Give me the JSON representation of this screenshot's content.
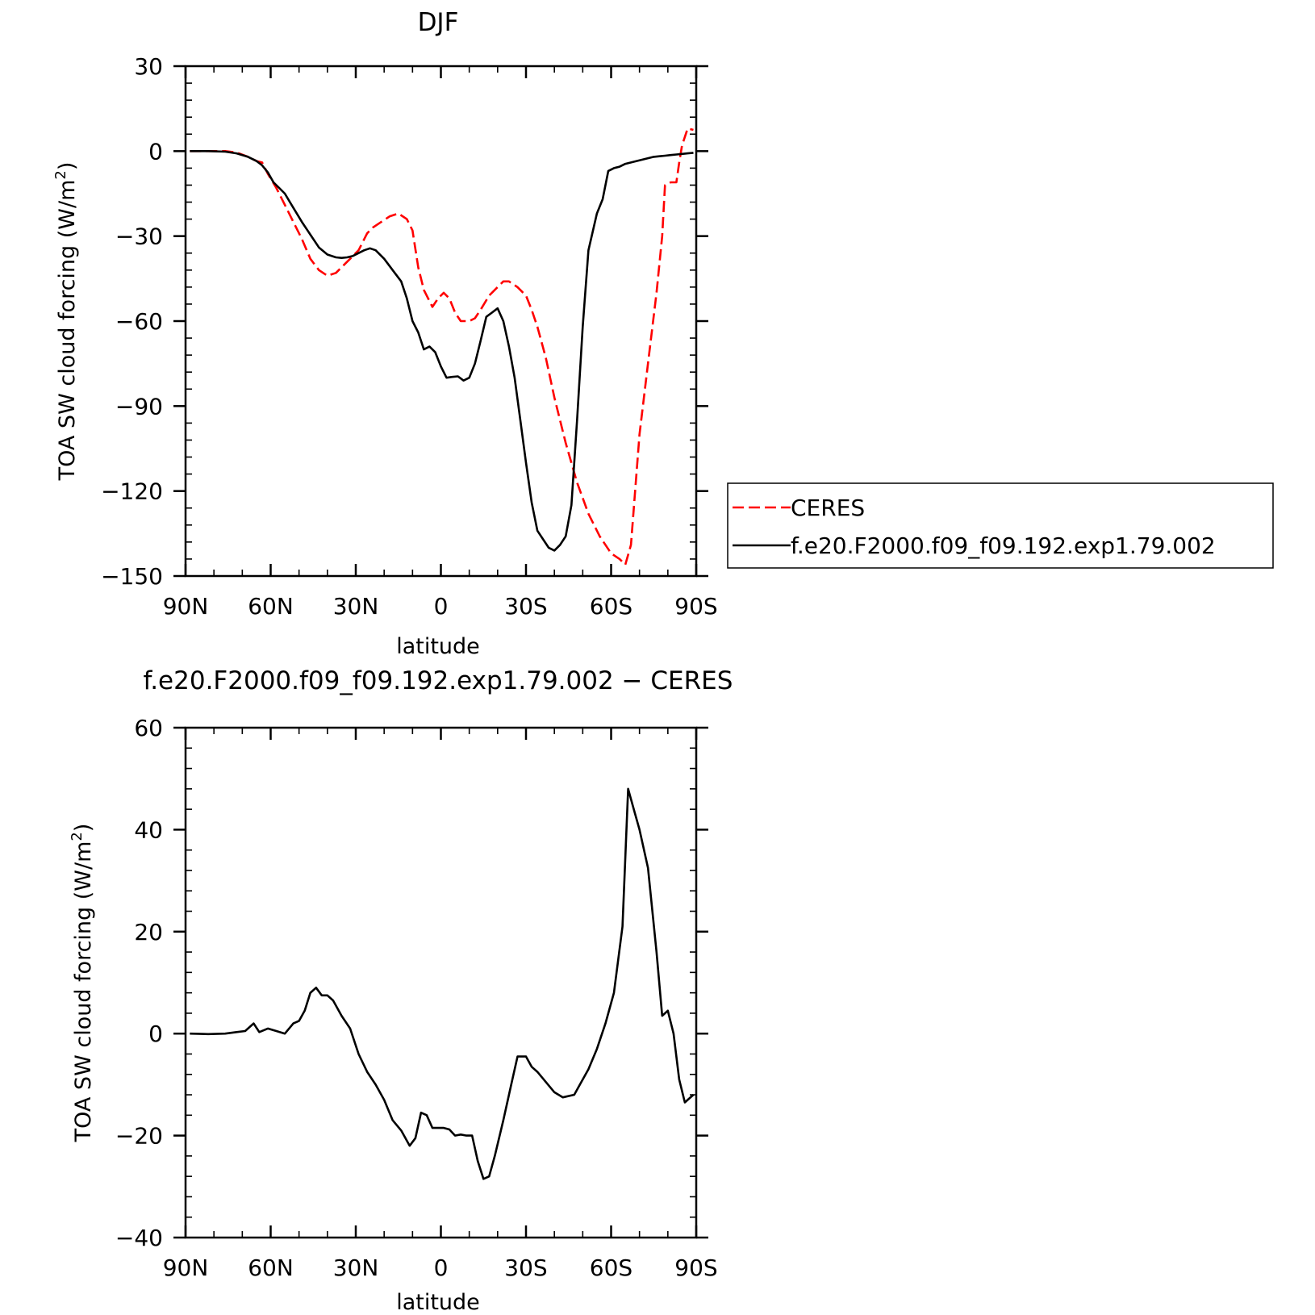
{
  "chart_data": [
    {
      "type": "line",
      "title": "DJF",
      "xlabel": "latitude",
      "ylabel": "TOA SW cloud forcing (W/m",
      "ylabel_sup": "2",
      "ylabel_close": ")",
      "x_tick_labels": [
        "90N",
        "60N",
        "30N",
        "0",
        "30S",
        "60S",
        "90S"
      ],
      "x_tick_values": [
        90,
        60,
        30,
        0,
        -30,
        -60,
        -90
      ],
      "xlim": [
        90,
        -90
      ],
      "ylim": [
        -150,
        30
      ],
      "y_ticks": [
        30,
        0,
        -30,
        -60,
        -90,
        -120,
        -150
      ],
      "y_tick_labels": [
        "30",
        "0",
        "−30",
        "−60",
        "−90",
        "−120",
        "−150"
      ],
      "legend": {
        "placement": "right"
      },
      "series": [
        {
          "name": "CERES",
          "color": "#ff0000",
          "dash": "dashed",
          "x": [
            88.5,
            82,
            76,
            72,
            68,
            65,
            63,
            61,
            58,
            55,
            52,
            49,
            46,
            43,
            40,
            37,
            35,
            32,
            29,
            26,
            24,
            21,
            18,
            15,
            12,
            10,
            8,
            6,
            3,
            1,
            -1,
            -3,
            -5,
            -7,
            -10,
            -12,
            -14,
            -17,
            -20,
            -22,
            -24,
            -27,
            -30,
            -32,
            -34,
            -37,
            -40,
            -44,
            -48,
            -52,
            -56,
            -60,
            -63,
            -65,
            -67,
            -70,
            -73,
            -76,
            -78,
            -79,
            -81,
            -83,
            -84,
            -85,
            -87,
            -89
          ],
          "y": [
            0,
            0,
            0,
            -0.5,
            -2,
            -3.5,
            -4,
            -8,
            -13,
            -19,
            -25,
            -31,
            -38,
            -42,
            -44,
            -43,
            -41,
            -38,
            -35,
            -29,
            -27,
            -25,
            -23,
            -22,
            -24,
            -28,
            -41,
            -49,
            -55,
            -52,
            -50,
            -52,
            -57,
            -60,
            -60,
            -59,
            -56,
            -51,
            -48,
            -46,
            -46,
            -48,
            -51,
            -56,
            -62,
            -73,
            -87,
            -103,
            -117,
            -128,
            -136,
            -142,
            -144,
            -146,
            -139,
            -100,
            -75,
            -50,
            -30,
            -12,
            -11,
            -11,
            -4,
            2,
            8,
            7.5
          ]
        },
        {
          "name": "f.e20.F2000.f09_f09.192.exp1.79.002",
          "color": "#000000",
          "dash": "solid",
          "x": [
            88.5,
            82,
            76,
            72,
            68,
            65,
            63,
            61,
            59,
            57,
            55,
            52,
            49,
            46,
            43,
            40,
            37,
            35,
            33,
            31,
            29,
            27,
            25,
            23,
            20,
            17,
            14,
            12,
            10,
            8,
            6,
            4,
            2,
            0,
            -2,
            -4,
            -6,
            -8,
            -10,
            -12,
            -14,
            -16,
            -18,
            -20,
            -22,
            -24,
            -26,
            -28,
            -30,
            -32,
            -34,
            -36,
            -38,
            -40,
            -42,
            -44,
            -46,
            -48,
            -50,
            -52,
            -55,
            -57,
            -59,
            -61,
            -63,
            -65,
            -67,
            -69,
            -71,
            -73,
            -75,
            -77,
            -79,
            -81,
            -83,
            -85,
            -87,
            -89
          ],
          "y": [
            0,
            0,
            -0.2,
            -0.8,
            -2,
            -3.5,
            -5,
            -7.5,
            -11,
            -13,
            -15,
            -20,
            -25,
            -29.5,
            -34,
            -36.5,
            -37.5,
            -37.7,
            -37.5,
            -37,
            -36,
            -35,
            -34.3,
            -35,
            -38,
            -42,
            -46,
            -52,
            -60,
            -64,
            -70,
            -69,
            -71,
            -76,
            -80,
            -79.7,
            -79.5,
            -81,
            -80,
            -75,
            -67,
            -58.5,
            -57,
            -55.5,
            -60,
            -69,
            -80,
            -95,
            -110,
            -124,
            -134,
            -137,
            -140,
            -141,
            -139,
            -136,
            -125,
            -95,
            -62,
            -35,
            -22,
            -17,
            -7,
            -6,
            -5.5,
            -4.5,
            -4,
            -3.5,
            -3,
            -2.5,
            -2,
            -1.8,
            -1.6,
            -1.4,
            -1.2,
            -1,
            -0.8,
            -0.6
          ]
        }
      ]
    },
    {
      "type": "line",
      "title": "f.e20.F2000.f09_f09.192.exp1.79.002 − CERES",
      "xlabel": "latitude",
      "ylabel": "TOA SW cloud forcing (W/m",
      "ylabel_sup": "2",
      "ylabel_close": ")",
      "x_tick_labels": [
        "90N",
        "60N",
        "30N",
        "0",
        "30S",
        "60S",
        "90S"
      ],
      "x_tick_values": [
        90,
        60,
        30,
        0,
        -30,
        -60,
        -90
      ],
      "xlim": [
        90,
        -90
      ],
      "ylim": [
        -40,
        60
      ],
      "y_ticks": [
        60,
        40,
        20,
        0,
        -20,
        -40
      ],
      "y_tick_labels": [
        "60",
        "40",
        "20",
        "0",
        "−20",
        "−40"
      ],
      "series": [
        {
          "color": "#000000",
          "dash": "solid",
          "x": [
            88.5,
            82,
            76,
            72,
            69,
            66,
            64,
            61,
            58,
            55,
            52,
            50,
            48,
            46,
            44,
            42,
            40,
            38,
            35,
            32,
            29,
            26,
            23,
            20,
            17,
            14,
            11,
            9,
            7,
            5,
            3,
            1,
            -1,
            -3,
            -5,
            -7,
            -9,
            -11,
            -13,
            -15,
            -17,
            -19,
            -22,
            -25,
            -27,
            -30,
            -32,
            -34,
            -37,
            -40,
            -43,
            -47,
            -49,
            -52,
            -55,
            -58,
            -61,
            -64,
            -66,
            -68,
            -70,
            -73,
            -76,
            -78,
            -80,
            -82,
            -84,
            -86,
            -89
          ],
          "y": [
            0,
            -0.1,
            0,
            0.3,
            0.5,
            2,
            0.3,
            1,
            0.5,
            0,
            2,
            2.5,
            4.5,
            8,
            9,
            7.5,
            7.5,
            6.5,
            3.5,
            1,
            -4,
            -7.5,
            -10,
            -13,
            -17,
            -19,
            -22,
            -20.5,
            -15.5,
            -16,
            -18.5,
            -18.5,
            -18.5,
            -18.8,
            -20,
            -19.8,
            -20,
            -20,
            -25,
            -28.5,
            -28,
            -24,
            -17,
            -9.5,
            -4.5,
            -4.5,
            -6.5,
            -7.5,
            -9.5,
            -11.5,
            -12.5,
            -12,
            -10,
            -7,
            -3,
            2,
            8,
            21,
            48,
            44,
            40,
            32.5,
            16,
            3.5,
            4.5,
            0,
            -9,
            -13.5,
            -12
          ]
        }
      ]
    }
  ]
}
